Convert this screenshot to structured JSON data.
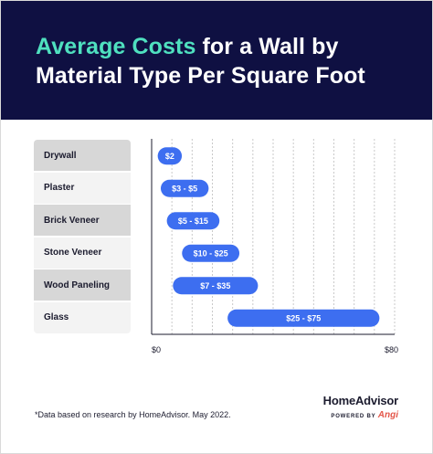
{
  "title": {
    "accent": "Average Costs",
    "rest_line1": " for a Wall by",
    "line2": "Material Type Per Square Foot"
  },
  "footnote": "*Data based on research by HomeAdvisor. May 2022.",
  "brand": {
    "name": "HomeAdvisor",
    "powered_by": "POWERED BY",
    "partner": "Angi"
  },
  "colors": {
    "header_bg": "#0f1042",
    "title_accent": "#4fe0bf",
    "bar": "#3d6ef0",
    "brand_partner": "#e4574a"
  },
  "chart_data": {
    "type": "bar",
    "orientation": "horizontal",
    "title": "Average Costs for a Wall by Material Type Per Square Foot",
    "categories": [
      "Drywall",
      "Plaster",
      "Brick Veneer",
      "Stone Veneer",
      "Wood Paneling",
      "Glass"
    ],
    "ranges": [
      {
        "min": 2,
        "max": 2,
        "label": "$2"
      },
      {
        "min": 3,
        "max": 5,
        "label": "$3 - $5"
      },
      {
        "min": 5,
        "max": 15,
        "label": "$5 - $15"
      },
      {
        "min": 10,
        "max": 25,
        "label": "$10 - $25"
      },
      {
        "min": 7,
        "max": 35,
        "label": "$7 - $35"
      },
      {
        "min": 25,
        "max": 75,
        "label": "$25 - $75"
      }
    ],
    "xlim": [
      0,
      80
    ],
    "x_tick_labels": [
      "$0",
      "$80"
    ],
    "grid": true,
    "unit": "$ per square foot"
  }
}
